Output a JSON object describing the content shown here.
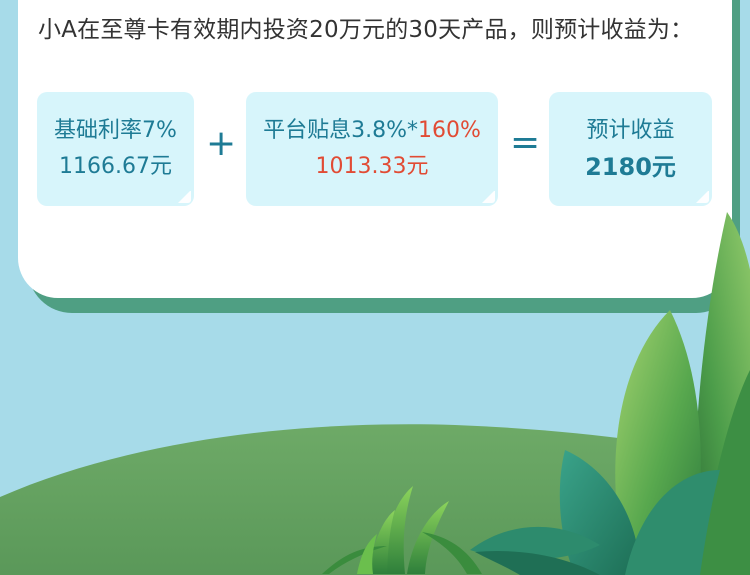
{
  "headline": "小A在至尊卡有效期内投资20万元的30天产品，则预计收益为：",
  "formula": {
    "base": {
      "label": "基础利率7%",
      "value": "1166.67元"
    },
    "plus": "+",
    "subsidy": {
      "label_prefix": "平台贴息3.8%*",
      "label_highlight": "160%",
      "value": "1013.33元"
    },
    "equals": "=",
    "result": {
      "label": "预计收益",
      "value": "2180元"
    }
  },
  "colors": {
    "accent_teal": "#1e7b95",
    "accent_red": "#e14b34",
    "tile_bg": "#d7f5fb",
    "card_bg": "#ffffff",
    "shadow_green": "#4f9f83",
    "sky": "#a7dbe9"
  }
}
